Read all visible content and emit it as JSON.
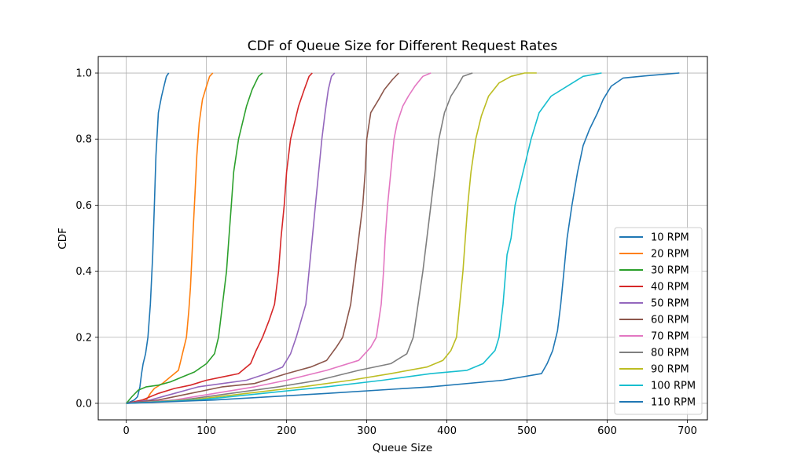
{
  "chart_data": {
    "type": "line",
    "title": "CDF of Queue Size for Different Request Rates",
    "xlabel": "Queue Size",
    "ylabel": "CDF",
    "xlim": [
      -35,
      725
    ],
    "ylim": [
      -0.05,
      1.05
    ],
    "xticks": [
      0,
      100,
      200,
      300,
      400,
      500,
      600,
      700
    ],
    "xtick_labels": [
      "0",
      "100",
      "200",
      "300",
      "400",
      "500",
      "600",
      "700"
    ],
    "yticks": [
      0.0,
      0.2,
      0.4,
      0.6,
      0.8,
      1.0
    ],
    "ytick_labels": [
      "0.0",
      "0.2",
      "0.4",
      "0.6",
      "0.8",
      "1.0"
    ],
    "grid": true,
    "legend_position": "lower right",
    "series": [
      {
        "name": "10 RPM",
        "color": "#1f77b4",
        "points": [
          [
            0,
            0
          ],
          [
            5,
            0.005
          ],
          [
            10,
            0.01
          ],
          [
            14,
            0.02
          ],
          [
            17,
            0.05
          ],
          [
            19,
            0.09
          ],
          [
            21,
            0.12
          ],
          [
            24,
            0.15
          ],
          [
            27,
            0.2
          ],
          [
            30,
            0.3
          ],
          [
            33,
            0.45
          ],
          [
            35,
            0.6
          ],
          [
            37,
            0.75
          ],
          [
            40,
            0.88
          ],
          [
            44,
            0.93
          ],
          [
            47,
            0.96
          ],
          [
            50,
            0.99
          ],
          [
            53,
            1.0
          ]
        ]
      },
      {
        "name": "20 RPM",
        "color": "#ff7f0e",
        "points": [
          [
            0,
            0
          ],
          [
            15,
            0.005
          ],
          [
            25,
            0.01
          ],
          [
            30,
            0.03
          ],
          [
            35,
            0.045
          ],
          [
            45,
            0.06
          ],
          [
            55,
            0.08
          ],
          [
            65,
            0.1
          ],
          [
            70,
            0.15
          ],
          [
            75,
            0.2
          ],
          [
            78,
            0.28
          ],
          [
            80,
            0.35
          ],
          [
            82,
            0.45
          ],
          [
            84,
            0.55
          ],
          [
            86,
            0.65
          ],
          [
            88,
            0.75
          ],
          [
            91,
            0.85
          ],
          [
            95,
            0.92
          ],
          [
            100,
            0.96
          ],
          [
            104,
            0.99
          ],
          [
            108,
            1.0
          ]
        ]
      },
      {
        "name": "30 RPM",
        "color": "#2ca02c",
        "points": [
          [
            0,
            0
          ],
          [
            7,
            0.02
          ],
          [
            15,
            0.04
          ],
          [
            25,
            0.05
          ],
          [
            40,
            0.055
          ],
          [
            55,
            0.065
          ],
          [
            70,
            0.08
          ],
          [
            85,
            0.095
          ],
          [
            100,
            0.12
          ],
          [
            110,
            0.15
          ],
          [
            115,
            0.2
          ],
          [
            120,
            0.3
          ],
          [
            125,
            0.4
          ],
          [
            128,
            0.5
          ],
          [
            131,
            0.6
          ],
          [
            134,
            0.7
          ],
          [
            140,
            0.8
          ],
          [
            145,
            0.85
          ],
          [
            150,
            0.9
          ],
          [
            157,
            0.95
          ],
          [
            165,
            0.99
          ],
          [
            170,
            1.0
          ]
        ]
      },
      {
        "name": "40 RPM",
        "color": "#d62728",
        "points": [
          [
            0,
            0
          ],
          [
            20,
            0.01
          ],
          [
            40,
            0.03
          ],
          [
            60,
            0.045
          ],
          [
            80,
            0.055
          ],
          [
            100,
            0.07
          ],
          [
            120,
            0.08
          ],
          [
            140,
            0.09
          ],
          [
            155,
            0.12
          ],
          [
            162,
            0.16
          ],
          [
            170,
            0.2
          ],
          [
            178,
            0.25
          ],
          [
            185,
            0.3
          ],
          [
            190,
            0.4
          ],
          [
            193,
            0.5
          ],
          [
            197,
            0.6
          ],
          [
            200,
            0.7
          ],
          [
            205,
            0.8
          ],
          [
            210,
            0.85
          ],
          [
            215,
            0.9
          ],
          [
            222,
            0.95
          ],
          [
            228,
            0.99
          ],
          [
            232,
            1.0
          ]
        ]
      },
      {
        "name": "50 RPM",
        "color": "#9467bd",
        "points": [
          [
            0,
            0
          ],
          [
            30,
            0.01
          ],
          [
            60,
            0.03
          ],
          [
            90,
            0.05
          ],
          [
            120,
            0.06
          ],
          [
            150,
            0.07
          ],
          [
            175,
            0.09
          ],
          [
            195,
            0.11
          ],
          [
            205,
            0.15
          ],
          [
            212,
            0.2
          ],
          [
            218,
            0.25
          ],
          [
            224,
            0.3
          ],
          [
            228,
            0.4
          ],
          [
            232,
            0.5
          ],
          [
            236,
            0.6
          ],
          [
            240,
            0.7
          ],
          [
            244,
            0.8
          ],
          [
            248,
            0.88
          ],
          [
            252,
            0.95
          ],
          [
            256,
            0.99
          ],
          [
            260,
            1.0
          ]
        ]
      },
      {
        "name": "60 RPM",
        "color": "#8c564b",
        "points": [
          [
            0,
            0
          ],
          [
            40,
            0.01
          ],
          [
            80,
            0.03
          ],
          [
            120,
            0.05
          ],
          [
            160,
            0.06
          ],
          [
            200,
            0.09
          ],
          [
            230,
            0.11
          ],
          [
            250,
            0.13
          ],
          [
            262,
            0.17
          ],
          [
            270,
            0.2
          ],
          [
            275,
            0.25
          ],
          [
            280,
            0.3
          ],
          [
            285,
            0.4
          ],
          [
            290,
            0.5
          ],
          [
            295,
            0.6
          ],
          [
            298,
            0.7
          ],
          [
            300,
            0.8
          ],
          [
            305,
            0.88
          ],
          [
            315,
            0.92
          ],
          [
            322,
            0.95
          ],
          [
            332,
            0.98
          ],
          [
            340,
            1.0
          ]
        ]
      },
      {
        "name": "70 RPM",
        "color": "#e377c2",
        "points": [
          [
            0,
            0
          ],
          [
            60,
            0.01
          ],
          [
            110,
            0.03
          ],
          [
            160,
            0.05
          ],
          [
            200,
            0.07
          ],
          [
            250,
            0.1
          ],
          [
            290,
            0.13
          ],
          [
            305,
            0.17
          ],
          [
            312,
            0.2
          ],
          [
            318,
            0.3
          ],
          [
            321,
            0.4
          ],
          [
            323,
            0.5
          ],
          [
            326,
            0.6
          ],
          [
            330,
            0.7
          ],
          [
            334,
            0.8
          ],
          [
            338,
            0.85
          ],
          [
            345,
            0.9
          ],
          [
            352,
            0.93
          ],
          [
            360,
            0.96
          ],
          [
            370,
            0.99
          ],
          [
            380,
            1.0
          ]
        ]
      },
      {
        "name": "80 RPM",
        "color": "#7f7f7f",
        "points": [
          [
            0,
            0
          ],
          [
            70,
            0.01
          ],
          [
            130,
            0.03
          ],
          [
            190,
            0.05
          ],
          [
            240,
            0.07
          ],
          [
            290,
            0.1
          ],
          [
            330,
            0.12
          ],
          [
            350,
            0.15
          ],
          [
            358,
            0.2
          ],
          [
            364,
            0.3
          ],
          [
            370,
            0.4
          ],
          [
            375,
            0.5
          ],
          [
            380,
            0.6
          ],
          [
            385,
            0.7
          ],
          [
            390,
            0.8
          ],
          [
            397,
            0.88
          ],
          [
            405,
            0.93
          ],
          [
            413,
            0.96
          ],
          [
            420,
            0.99
          ],
          [
            432,
            1.0
          ]
        ]
      },
      {
        "name": "90 RPM",
        "color": "#bcbd22",
        "points": [
          [
            0,
            0
          ],
          [
            80,
            0.01
          ],
          [
            150,
            0.03
          ],
          [
            220,
            0.05
          ],
          [
            280,
            0.07
          ],
          [
            330,
            0.09
          ],
          [
            375,
            0.11
          ],
          [
            395,
            0.13
          ],
          [
            405,
            0.16
          ],
          [
            412,
            0.2
          ],
          [
            416,
            0.3
          ],
          [
            420,
            0.4
          ],
          [
            423,
            0.5
          ],
          [
            426,
            0.6
          ],
          [
            430,
            0.7
          ],
          [
            436,
            0.8
          ],
          [
            443,
            0.87
          ],
          [
            452,
            0.93
          ],
          [
            465,
            0.97
          ],
          [
            480,
            0.99
          ],
          [
            497,
            1.0
          ],
          [
            512,
            1.0
          ]
        ]
      },
      {
        "name": "100 RPM",
        "color": "#17becf",
        "points": [
          [
            0,
            0
          ],
          [
            90,
            0.01
          ],
          [
            170,
            0.03
          ],
          [
            250,
            0.05
          ],
          [
            320,
            0.07
          ],
          [
            380,
            0.09
          ],
          [
            425,
            0.1
          ],
          [
            445,
            0.12
          ],
          [
            460,
            0.16
          ],
          [
            465,
            0.2
          ],
          [
            470,
            0.3
          ],
          [
            475,
            0.45
          ],
          [
            480,
            0.5
          ],
          [
            485,
            0.6
          ],
          [
            495,
            0.7
          ],
          [
            505,
            0.8
          ],
          [
            515,
            0.88
          ],
          [
            530,
            0.93
          ],
          [
            550,
            0.96
          ],
          [
            570,
            0.99
          ],
          [
            593,
            1.0
          ]
        ]
      },
      {
        "name": "110 RPM",
        "color": "#1f77b4",
        "points": [
          [
            0,
            0
          ],
          [
            110,
            0.01
          ],
          [
            250,
            0.03
          ],
          [
            380,
            0.05
          ],
          [
            470,
            0.07
          ],
          [
            518,
            0.09
          ],
          [
            525,
            0.12
          ],
          [
            532,
            0.16
          ],
          [
            538,
            0.22
          ],
          [
            542,
            0.3
          ],
          [
            546,
            0.4
          ],
          [
            550,
            0.5
          ],
          [
            556,
            0.6
          ],
          [
            563,
            0.7
          ],
          [
            570,
            0.78
          ],
          [
            578,
            0.83
          ],
          [
            588,
            0.88
          ],
          [
            595,
            0.92
          ],
          [
            605,
            0.96
          ],
          [
            620,
            0.985
          ],
          [
            650,
            0.992
          ],
          [
            675,
            0.997
          ],
          [
            690,
            1.0
          ]
        ]
      }
    ]
  }
}
